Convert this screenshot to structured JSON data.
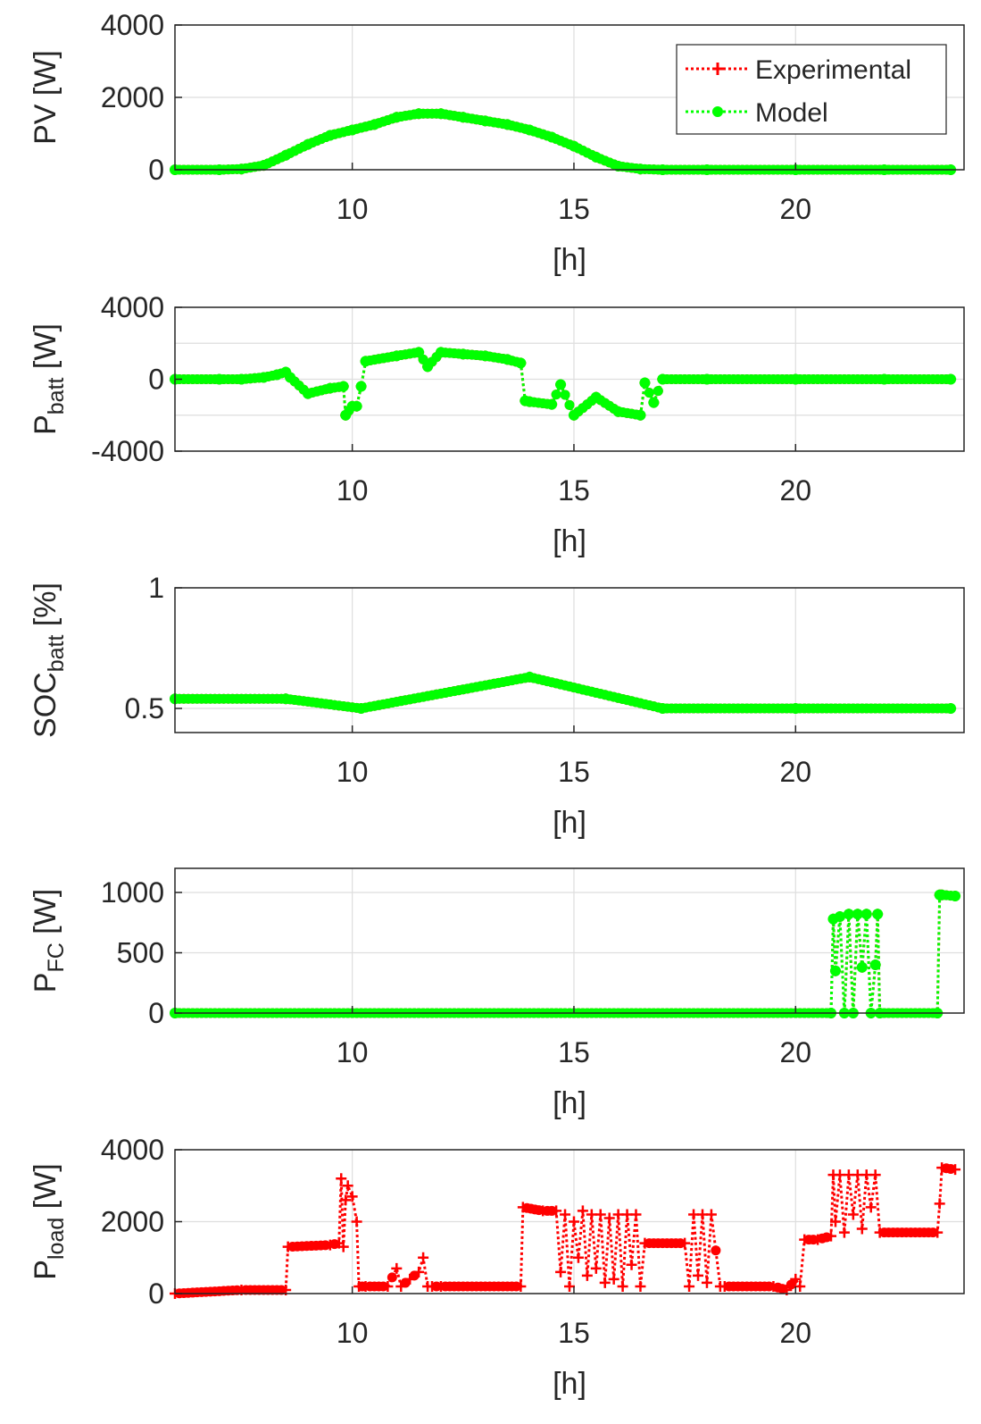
{
  "figure": {
    "legend": {
      "location": "northeast of first panel",
      "entries": [
        {
          "label": "Experimental",
          "color": "#ff0000",
          "line": "dotted",
          "marker": "+"
        },
        {
          "label": "Model",
          "color": "#00ff00",
          "line": "dotted",
          "marker": "*"
        }
      ]
    }
  },
  "chart_data": [
    {
      "type": "line",
      "panel": "pv",
      "ylabel": "PV [W]",
      "xlabel": "[h]",
      "xlim": [
        6,
        23.8
      ],
      "ylim": [
        0,
        4000
      ],
      "xticks": [
        10,
        15,
        20
      ],
      "yticks": [
        0,
        2000,
        4000
      ],
      "grid": true,
      "series": [
        {
          "name": "Experimental",
          "color": "#ff0000",
          "x": [
            6,
            7,
            7.5,
            8,
            8.5,
            9,
            9.5,
            10,
            10.5,
            11,
            11.5,
            12,
            12.5,
            13,
            13.5,
            14,
            14.5,
            15,
            15.5,
            16,
            16.5,
            17,
            18,
            20,
            22,
            23.5
          ],
          "y": [
            0,
            0,
            20,
            120,
            400,
            700,
            950,
            1100,
            1250,
            1450,
            1550,
            1550,
            1450,
            1350,
            1250,
            1100,
            900,
            650,
            350,
            100,
            20,
            0,
            0,
            0,
            0,
            0
          ]
        },
        {
          "name": "Model",
          "color": "#00ff00",
          "x": [
            6,
            7,
            7.5,
            8,
            8.5,
            9,
            9.5,
            10,
            10.5,
            11,
            11.5,
            12,
            12.5,
            13,
            13.5,
            14,
            14.5,
            15,
            15.5,
            16,
            16.5,
            17,
            18,
            20,
            22,
            23.5
          ],
          "y": [
            0,
            0,
            20,
            120,
            400,
            700,
            950,
            1100,
            1250,
            1450,
            1550,
            1550,
            1450,
            1350,
            1250,
            1100,
            900,
            650,
            350,
            100,
            20,
            0,
            0,
            0,
            0,
            0
          ]
        }
      ]
    },
    {
      "type": "line",
      "panel": "battery-power",
      "ylabel": "P",
      "ylabel_sub": "batt",
      "ylabel_unit": "[W]",
      "xlabel": "[h]",
      "xlim": [
        6,
        23.8
      ],
      "ylim": [
        -4000,
        4000
      ],
      "xticks": [
        10,
        15,
        20
      ],
      "yticks": [
        -4000,
        0,
        4000
      ],
      "grid": true,
      "series": [
        {
          "name": "Experimental",
          "color": "#ff0000",
          "x": [
            6,
            7,
            7.5,
            8,
            8.3,
            8.5,
            8.6,
            9,
            9.5,
            9.8,
            9.85,
            10,
            10.1,
            10.2,
            10.3,
            11,
            11.5,
            11.7,
            12,
            12.5,
            13,
            13.5,
            13.8,
            13.9,
            14,
            14.5,
            14.7,
            15,
            15.5,
            16,
            16.5,
            16.6,
            16.8,
            17,
            18,
            20,
            22,
            23.5
          ],
          "y": [
            0,
            0,
            0,
            100,
            250,
            400,
            100,
            -800,
            -500,
            -400,
            -2000,
            -1500,
            -1500,
            -400,
            1000,
            1300,
            1500,
            700,
            1500,
            1400,
            1300,
            1100,
            900,
            -1200,
            -1250,
            -1400,
            -300,
            -2000,
            -1000,
            -1800,
            -2000,
            -200,
            -1300,
            0,
            0,
            0,
            0,
            0
          ]
        },
        {
          "name": "Model",
          "color": "#00ff00",
          "x": [
            6,
            7,
            7.5,
            8,
            8.3,
            8.5,
            8.6,
            9,
            9.5,
            9.8,
            9.85,
            10,
            10.1,
            10.2,
            10.3,
            11,
            11.5,
            11.7,
            12,
            12.5,
            13,
            13.5,
            13.8,
            13.9,
            14,
            14.5,
            14.7,
            15,
            15.5,
            16,
            16.5,
            16.6,
            16.8,
            17,
            18,
            20,
            22,
            23.5
          ],
          "y": [
            0,
            0,
            0,
            100,
            250,
            400,
            100,
            -800,
            -500,
            -400,
            -2000,
            -1500,
            -1500,
            -400,
            1000,
            1300,
            1500,
            700,
            1500,
            1400,
            1300,
            1100,
            900,
            -1200,
            -1250,
            -1400,
            -300,
            -2000,
            -1000,
            -1800,
            -2000,
            -200,
            -1300,
            0,
            0,
            0,
            0,
            0
          ]
        }
      ]
    },
    {
      "type": "line",
      "panel": "battery-soc",
      "ylabel": "SOC",
      "ylabel_sub": "batt",
      "ylabel_unit": "[%]",
      "xlabel": "[h]",
      "xlim": [
        6,
        23.8
      ],
      "ylim": [
        0.4,
        1
      ],
      "xticks": [
        10,
        15,
        20
      ],
      "yticks": [
        0.5,
        1
      ],
      "grid": true,
      "series": [
        {
          "name": "Experimental",
          "color": "#ff0000",
          "x": [
            6,
            8.5,
            10.2,
            14,
            17,
            20,
            23.5
          ],
          "y": [
            0.54,
            0.54,
            0.5,
            0.63,
            0.5,
            0.5,
            0.5
          ]
        },
        {
          "name": "Model",
          "color": "#00ff00",
          "x": [
            6,
            8.5,
            10.2,
            14,
            17,
            20,
            23.5
          ],
          "y": [
            0.54,
            0.54,
            0.5,
            0.63,
            0.5,
            0.5,
            0.5
          ]
        }
      ]
    },
    {
      "type": "line",
      "panel": "fuel-cell",
      "ylabel": "P",
      "ylabel_sub": "FC",
      "ylabel_unit": "[W]",
      "xlabel": "[h]",
      "xlim": [
        6,
        23.8
      ],
      "ylim": [
        0,
        1200
      ],
      "xticks": [
        10,
        15,
        20
      ],
      "yticks": [
        0,
        500,
        1000
      ],
      "grid": true,
      "series": [
        {
          "name": "Experimental",
          "color": "#ff0000",
          "x": [
            6,
            20.8,
            20.85,
            20.9,
            21.0,
            21.1,
            21.2,
            21.3,
            21.4,
            21.5,
            21.6,
            21.7,
            21.8,
            21.85,
            21.9,
            23.2,
            23.25,
            23.3,
            23.6
          ],
          "y": [
            0,
            0,
            780,
            350,
            800,
            0,
            820,
            0,
            820,
            380,
            820,
            0,
            400,
            820,
            0,
            0,
            980,
            980,
            970
          ]
        },
        {
          "name": "Model",
          "color": "#00ff00",
          "x": [
            6,
            20.8,
            20.85,
            20.9,
            21.0,
            21.1,
            21.2,
            21.3,
            21.4,
            21.5,
            21.6,
            21.7,
            21.8,
            21.85,
            21.9,
            23.2,
            23.25,
            23.3,
            23.6
          ],
          "y": [
            0,
            0,
            780,
            350,
            800,
            0,
            820,
            0,
            820,
            380,
            820,
            0,
            400,
            820,
            0,
            0,
            980,
            980,
            970
          ]
        }
      ]
    },
    {
      "type": "line",
      "panel": "load",
      "ylabel": "P",
      "ylabel_sub": "load",
      "ylabel_unit": "[W]",
      "xlabel": "[h]",
      "xlim": [
        6,
        23.8
      ],
      "ylim": [
        0,
        4000
      ],
      "xticks": [
        10,
        15,
        20
      ],
      "yticks": [
        0,
        2000,
        4000
      ],
      "grid": true,
      "series": [
        {
          "name": "Experimental",
          "color": "#ff0000",
          "x": [
            6,
            7.5,
            8.5,
            8.55,
            9.5,
            9.7,
            9.75,
            9.8,
            9.85,
            9.9,
            10.0,
            10.1,
            10.15,
            10.3,
            10.8,
            11.0,
            11.1,
            11.3,
            11.5,
            11.6,
            11.7,
            11.8,
            12.0,
            13.8,
            13.85,
            14.3,
            14.6,
            14.7,
            14.8,
            14.9,
            15.0,
            15.1,
            15.2,
            15.3,
            15.4,
            15.5,
            15.6,
            15.7,
            15.8,
            15.9,
            16.0,
            16.1,
            16.2,
            16.3,
            16.4,
            16.5,
            16.6,
            17.5,
            17.6,
            17.7,
            17.8,
            17.9,
            18.0,
            18.1,
            18.3,
            18.4,
            19.5,
            19.8,
            20.0,
            20.1,
            20.2,
            20.5,
            20.8,
            20.85,
            20.9,
            21.0,
            21.1,
            21.2,
            21.3,
            21.4,
            21.5,
            21.6,
            21.7,
            21.8,
            21.9,
            23.2,
            23.25,
            23.3,
            23.6
          ],
          "y": [
            0,
            100,
            100,
            1300,
            1350,
            1400,
            3200,
            1300,
            2600,
            3000,
            2700,
            2000,
            200,
            200,
            200,
            700,
            200,
            400,
            600,
            1000,
            200,
            200,
            200,
            200,
            2400,
            2300,
            2300,
            600,
            2200,
            200,
            2000,
            1000,
            2300,
            500,
            2200,
            700,
            2200,
            300,
            2100,
            400,
            2200,
            200,
            2200,
            800,
            2200,
            200,
            1400,
            1400,
            200,
            2200,
            500,
            2200,
            300,
            2200,
            200,
            200,
            200,
            100,
            400,
            200,
            1500,
            1500,
            1600,
            3300,
            2000,
            3300,
            1700,
            3300,
            2200,
            3300,
            1800,
            3300,
            2400,
            3300,
            1700,
            1700,
            2500,
            3500,
            3450
          ]
        },
        {
          "name": "Model",
          "color": "#00ff00",
          "x": [],
          "y": []
        }
      ]
    }
  ]
}
